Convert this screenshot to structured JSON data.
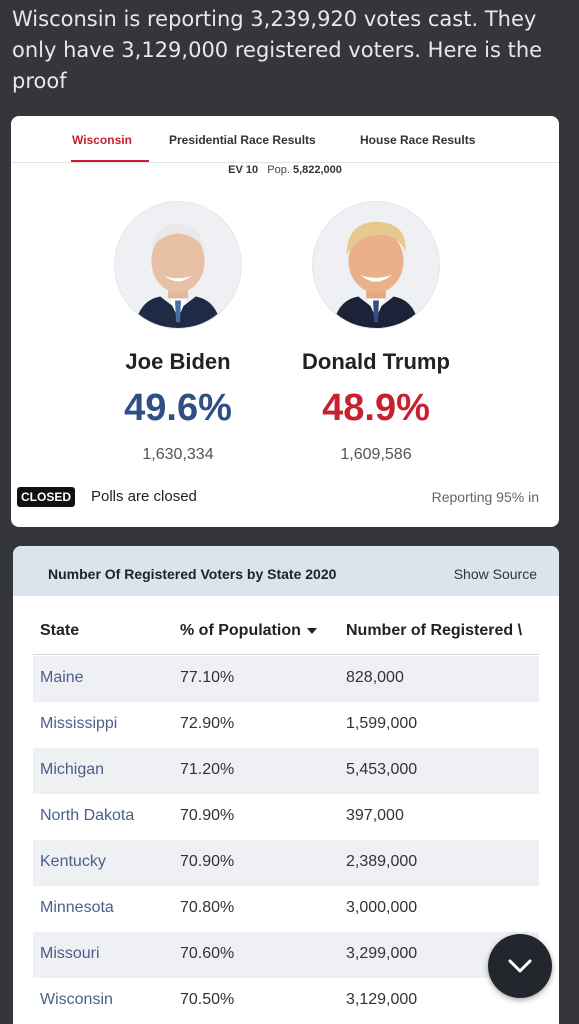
{
  "post": {
    "text": "Wisconsin is reporting 3,239,920 votes cast. They only have 3,129,000 registered voters. Here is the proof"
  },
  "results_card": {
    "tabs": [
      {
        "label": "Wisconsin",
        "active": true
      },
      {
        "label": "Presidential Race Results",
        "active": false
      },
      {
        "label": "House Race Results",
        "active": false
      }
    ],
    "ev_label": "EV 10",
    "pop_prefix": "Pop.",
    "pop_value": "5,822,000",
    "candidates": [
      {
        "name": "Joe Biden",
        "percent": "49.6%",
        "votes": "1,630,334",
        "color": "#2f4f85"
      },
      {
        "name": "Donald Trump",
        "percent": "48.9%",
        "votes": "1,609,586",
        "color": "#c8202f"
      }
    ],
    "status_badge": "CLOSED",
    "status_text": "Polls are closed",
    "reporting_text": "Reporting 95% in"
  },
  "voters_card": {
    "title": "Number Of Registered Voters by State 2020",
    "show_source_label": "Show Source",
    "columns": [
      "State",
      "% of Population",
      "Number of Registered \\"
    ],
    "rows": [
      {
        "state": "Maine",
        "pct": "77.10%",
        "num": "828,000"
      },
      {
        "state": "Mississippi",
        "pct": "72.90%",
        "num": "1,599,000"
      },
      {
        "state": "Michigan",
        "pct": "71.20%",
        "num": "5,453,000"
      },
      {
        "state": "North Dakota",
        "pct": "70.90%",
        "num": "397,000"
      },
      {
        "state": "Kentucky",
        "pct": "70.90%",
        "num": "2,389,000"
      },
      {
        "state": "Minnesota",
        "pct": "70.80%",
        "num": "3,000,000"
      },
      {
        "state": "Missouri",
        "pct": "70.60%",
        "num": "3,299,000"
      },
      {
        "state": "Wisconsin",
        "pct": "70.50%",
        "num": "3,129,000"
      }
    ],
    "fab_icon": "chevron-down-icon"
  }
}
